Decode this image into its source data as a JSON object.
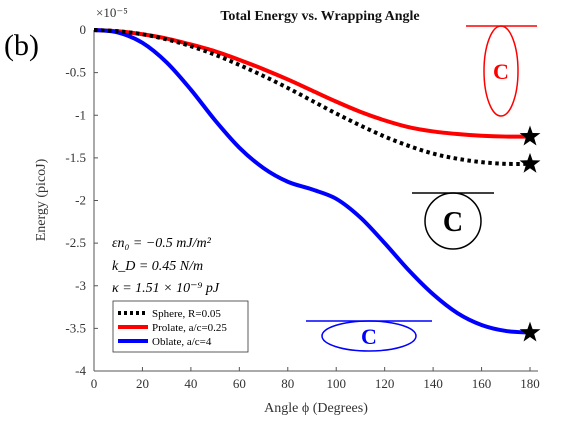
{
  "panel_label": "(b)",
  "chart_data": {
    "type": "line",
    "title": "Total Energy vs. Wrapping Angle",
    "xlabel": "Angle ϕ (Degrees)",
    "ylabel": "Energy (picoJ)",
    "exponent_label": "×10⁻⁵",
    "xlim": [
      0,
      180
    ],
    "ylim": [
      -4,
      0
    ],
    "grid": false,
    "legend_position": "bottom-left",
    "x_ticks": [
      0,
      20,
      40,
      60,
      80,
      100,
      120,
      140,
      160,
      180
    ],
    "x_tick_labels": [
      "0",
      "20",
      "40",
      "60",
      "80",
      "100",
      "120",
      "140",
      "160",
      "180"
    ],
    "y_ticks": [
      0,
      -0.5,
      -1,
      -1.5,
      -2,
      -2.5,
      -3,
      -3.5,
      -4
    ],
    "y_tick_labels": [
      "0",
      "-0.5",
      "-1",
      "-1.5",
      "-2",
      "-2.5",
      "-3",
      "-3.5",
      "-4"
    ],
    "series": [
      {
        "name": "Sphere, R=0.05",
        "color": "#000000",
        "style": "dotted",
        "x": [
          0,
          10,
          20,
          30,
          40,
          50,
          60,
          70,
          80,
          90,
          100,
          110,
          120,
          130,
          140,
          150,
          160,
          170,
          180
        ],
        "y": [
          0,
          -0.015,
          -0.05,
          -0.11,
          -0.19,
          -0.29,
          -0.41,
          -0.54,
          -0.68,
          -0.83,
          -0.98,
          -1.12,
          -1.25,
          -1.36,
          -1.45,
          -1.51,
          -1.55,
          -1.57,
          -1.57
        ]
      },
      {
        "name": "Prolate, a/c=0.25",
        "color": "#ff0000",
        "style": "solid",
        "x": [
          0,
          10,
          20,
          30,
          40,
          50,
          60,
          70,
          80,
          90,
          100,
          110,
          120,
          130,
          140,
          150,
          160,
          170,
          180
        ],
        "y": [
          0,
          -0.015,
          -0.05,
          -0.1,
          -0.17,
          -0.25,
          -0.35,
          -0.46,
          -0.58,
          -0.71,
          -0.84,
          -0.96,
          -1.06,
          -1.14,
          -1.19,
          -1.22,
          -1.24,
          -1.25,
          -1.25
        ]
      },
      {
        "name": "Oblate, a/c=4",
        "color": "#0000ff",
        "style": "solid",
        "x": [
          0,
          10,
          20,
          30,
          40,
          50,
          60,
          70,
          80,
          90,
          100,
          110,
          120,
          130,
          140,
          150,
          160,
          170,
          180
        ],
        "y": [
          0,
          -0.03,
          -0.15,
          -0.38,
          -0.7,
          -1.06,
          -1.38,
          -1.62,
          -1.78,
          -1.87,
          -1.98,
          -2.2,
          -2.5,
          -2.82,
          -3.1,
          -3.32,
          -3.46,
          -3.53,
          -3.55
        ]
      }
    ],
    "annotations": {
      "equations": [
        "εn₀ = −0.5 mJ/m²",
        "k_D = 0.45 N/m",
        "κ = 1.51 × 10⁻⁹ pJ"
      ],
      "shape_label": "C"
    }
  }
}
